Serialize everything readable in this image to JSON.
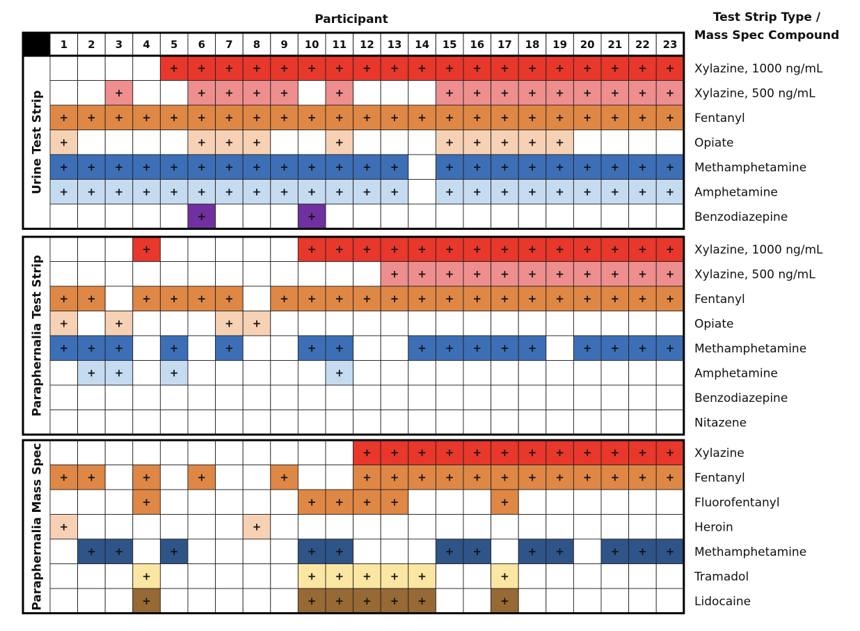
{
  "chart_data": {
    "type": "heatmap",
    "title": "Participant",
    "legend_title": [
      "Test Strip Type /",
      "Mass Spec Compound"
    ],
    "participants": [
      "1",
      "2",
      "3",
      "4",
      "5",
      "6",
      "7",
      "8",
      "9",
      "10",
      "11",
      "12",
      "13",
      "14",
      "15",
      "16",
      "17",
      "18",
      "19",
      "20",
      "21",
      "22",
      "23"
    ],
    "positive_marker": "+",
    "colors": {
      "xyl1000": "#e8372b",
      "xyl500": "#ee8e8e",
      "fentanyl": "#df8745",
      "opiate": "#f7d1b4",
      "meth": "#3d6fb7",
      "amph": "#c5dbf0",
      "benzo": "#7030a0",
      "meth_ms": "#2e5488",
      "tramadol": "#fbe6a2",
      "lidocaine": "#966935"
    },
    "sections": [
      {
        "name": "Urine Test Strip",
        "rows": [
          {
            "label": "Xylazine, 1000 ng/mL",
            "color": "xyl1000",
            "positive": [
              5,
              6,
              7,
              8,
              9,
              10,
              11,
              12,
              13,
              14,
              15,
              16,
              17,
              18,
              19,
              20,
              21,
              22,
              23
            ]
          },
          {
            "label": "Xylazine, 500 ng/mL",
            "color": "xyl500",
            "positive": [
              3,
              6,
              7,
              8,
              9,
              11,
              15,
              16,
              17,
              18,
              19,
              20,
              21,
              22,
              23
            ]
          },
          {
            "label": "Fentanyl",
            "color": "fentanyl",
            "positive": [
              1,
              2,
              3,
              4,
              5,
              6,
              7,
              8,
              9,
              10,
              11,
              12,
              13,
              14,
              15,
              16,
              17,
              18,
              19,
              20,
              21,
              22,
              23
            ]
          },
          {
            "label": "Opiate",
            "color": "opiate",
            "positive": [
              1,
              6,
              7,
              8,
              11,
              15,
              16,
              17,
              18,
              19
            ]
          },
          {
            "label": "Methamphetamine",
            "color": "meth",
            "positive": [
              1,
              2,
              3,
              4,
              5,
              6,
              7,
              8,
              9,
              10,
              11,
              12,
              13,
              15,
              16,
              17,
              18,
              19,
              20,
              21,
              22,
              23
            ]
          },
          {
            "label": "Amphetamine",
            "color": "amph",
            "positive": [
              1,
              2,
              3,
              4,
              5,
              6,
              7,
              8,
              9,
              10,
              11,
              12,
              13,
              15,
              16,
              17,
              18,
              19,
              20,
              21,
              22,
              23
            ]
          },
          {
            "label": "Benzodiazepine",
            "color": "benzo",
            "positive": [
              6,
              10
            ]
          }
        ]
      },
      {
        "name": "Paraphernalia Test Strip",
        "rows": [
          {
            "label": "Xylazine, 1000 ng/mL",
            "color": "xyl1000",
            "positive": [
              4,
              10,
              11,
              12,
              13,
              14,
              15,
              16,
              17,
              18,
              19,
              20,
              21,
              22,
              23
            ]
          },
          {
            "label": "Xylazine, 500 ng/mL",
            "color": "xyl500",
            "positive": [
              13,
              14,
              15,
              16,
              17,
              18,
              19,
              20,
              21,
              22,
              23
            ]
          },
          {
            "label": "Fentanyl",
            "color": "fentanyl",
            "positive": [
              1,
              2,
              4,
              5,
              6,
              7,
              9,
              10,
              11,
              12,
              13,
              14,
              15,
              16,
              17,
              18,
              19,
              20,
              21,
              22,
              23
            ]
          },
          {
            "label": "Opiate",
            "color": "opiate",
            "positive": [
              1,
              3,
              7,
              8
            ]
          },
          {
            "label": "Methamphetamine",
            "color": "meth",
            "positive": [
              1,
              2,
              3,
              5,
              7,
              10,
              11,
              14,
              15,
              16,
              17,
              18,
              20,
              21,
              22,
              23
            ]
          },
          {
            "label": "Amphetamine",
            "color": "amph",
            "positive": [
              2,
              3,
              5,
              11
            ]
          },
          {
            "label": "Benzodiazepine",
            "color": "benzo",
            "positive": []
          },
          {
            "label": "Nitazene",
            "color": "benzo",
            "positive": []
          }
        ]
      },
      {
        "name": "Paraphernalia Mass Spec",
        "rows": [
          {
            "label": "Xylazine",
            "color": "xyl1000",
            "positive": [
              12,
              13,
              14,
              15,
              16,
              17,
              18,
              19,
              20,
              21,
              22,
              23
            ]
          },
          {
            "label": "Fentanyl",
            "color": "fentanyl",
            "positive": [
              1,
              2,
              4,
              6,
              9,
              12,
              13,
              14,
              15,
              16,
              17,
              18,
              19,
              20,
              21,
              22,
              23
            ]
          },
          {
            "label": "Fluorofentanyl",
            "color": "fentanyl",
            "positive": [
              4,
              10,
              11,
              12,
              13,
              17
            ]
          },
          {
            "label": "Heroin",
            "color": "opiate",
            "positive": [
              1,
              8
            ]
          },
          {
            "label": "Methamphetamine",
            "color": "meth_ms",
            "positive": [
              2,
              3,
              5,
              10,
              11,
              15,
              16,
              18,
              19,
              21,
              22,
              23
            ]
          },
          {
            "label": "Tramadol",
            "color": "tramadol",
            "positive": [
              4,
              10,
              11,
              12,
              13,
              14,
              17
            ]
          },
          {
            "label": "Lidocaine",
            "color": "lidocaine",
            "positive": [
              4,
              10,
              11,
              12,
              13,
              14,
              17
            ]
          }
        ]
      }
    ]
  }
}
